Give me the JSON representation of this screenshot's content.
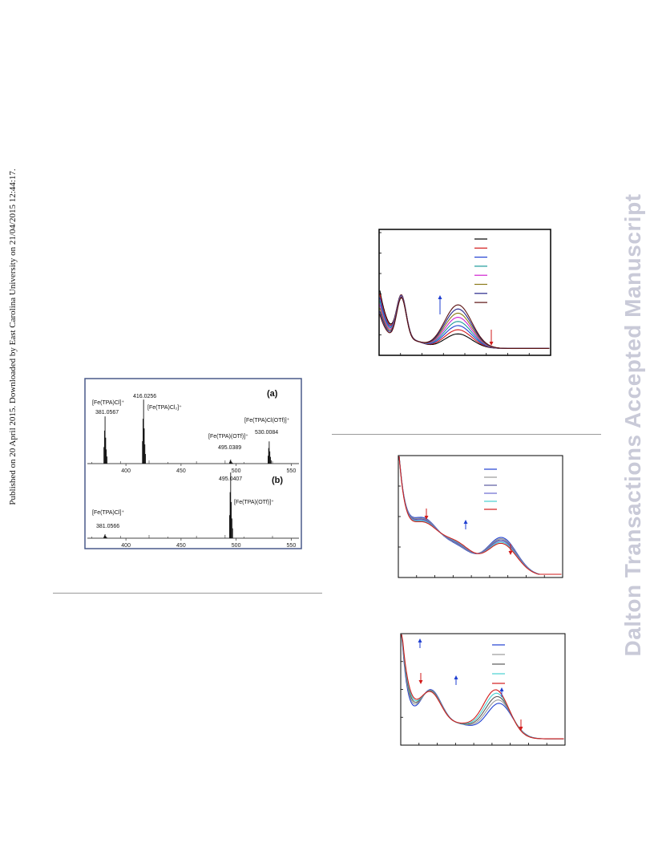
{
  "sidebar_text": "Published on 20 April 2015. Downloaded by East Carolina University on 21/04/2015 12:44:17.",
  "watermark": "Dalton Transactions Accepted Manuscript",
  "ms_figure": {
    "panel_a": {
      "label": "(a)",
      "peaks": [
        {
          "mz": 381.0567,
          "rel": 0.7
        },
        {
          "mz": 416.0256,
          "rel": 0.95
        },
        {
          "mz": 495.0389,
          "rel": 0.06
        },
        {
          "mz": 530.0084,
          "rel": 0.33
        }
      ],
      "annotations": {
        "fe_tpa_cl": "[Fe(TPA)Cl]⁺",
        "mz_381": "381.0567",
        "mz_416": "416.0256",
        "fe_tpa_cl2": "[Fe(TPA)Cl₂]⁺",
        "fe_tpa_otf": "[Fe(TPA)(OTf)]⁺",
        "mz_495": "495.0389",
        "fe_tpa_cl_otf": "[Fe(TPA)Cl(OTf)]⁺",
        "mz_530": "530.0084"
      }
    },
    "panel_b": {
      "label": "(b)",
      "peaks": [
        {
          "mz": 381.0566,
          "rel": 0.06
        },
        {
          "mz": 495.0407,
          "rel": 1.0
        }
      ],
      "annotations": {
        "mz_495": "495.0407",
        "fe_tpa_otf": "[Fe(TPA)(OTf)]⁺",
        "fe_tpa_cl": "[Fe(TPA)Cl]⁺",
        "mz_381": "381.0566"
      }
    },
    "xticks": [
      "400",
      "450",
      "500",
      "550"
    ],
    "xlim": [
      365,
      557
    ]
  },
  "chart_data": [
    {
      "type": "line",
      "note": "UV-vis spectra, 8 traces; arrows mark increasing (blue) and decreasing (red) regions",
      "series_colors": [
        "#000000",
        "#d21a1a",
        "#1f3fd1",
        "#1b9a9a",
        "#d021d0",
        "#8a7a18",
        "#25258a",
        "#5a1010"
      ],
      "arrows": [
        {
          "direction": "up",
          "color": "#1f3fd1"
        },
        {
          "direction": "down",
          "color": "#d21a1a"
        }
      ]
    },
    {
      "type": "line",
      "note": "Spectral changes, 6 traces",
      "series_colors": [
        "#1f3fd1",
        "#9a9a9a",
        "#5a5aa0",
        "#6a6ad0",
        "#48d0d0",
        "#d21a1a"
      ],
      "arrows": [
        {
          "direction": "down",
          "color": "#d21a1a"
        },
        {
          "direction": "up",
          "color": "#1f3fd1"
        },
        {
          "direction": "down",
          "color": "#d21a1a"
        }
      ]
    },
    {
      "type": "line",
      "note": "Spectral changes, 5 traces",
      "series_colors": [
        "#1f3fd1",
        "#9a9a9a",
        "#5a5a5a",
        "#48d0d0",
        "#d21a1a"
      ],
      "arrows": [
        {
          "direction": "up",
          "color": "#1f3fd1"
        },
        {
          "direction": "down",
          "color": "#d21a1a"
        },
        {
          "direction": "up",
          "color": "#1f3fd1"
        },
        {
          "direction": "up",
          "color": "#1f3fd1"
        },
        {
          "direction": "down",
          "color": "#d21a1a"
        }
      ]
    }
  ]
}
